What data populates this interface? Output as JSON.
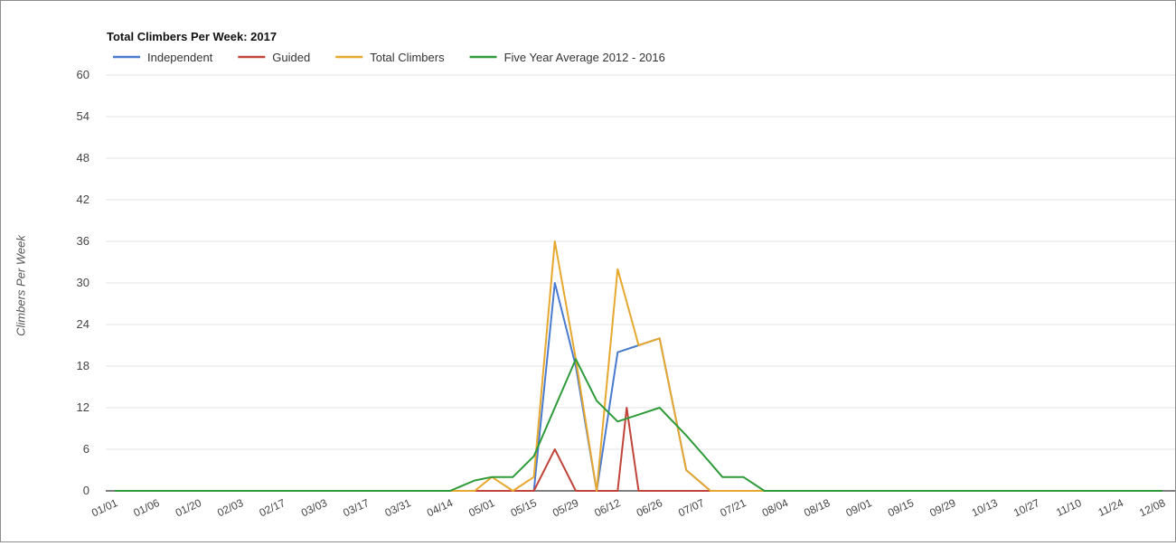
{
  "chart_data": {
    "type": "line",
    "title": "Total Climbers Per Week: 2017",
    "xlabel": "",
    "ylabel": "Climbers Per Week",
    "ylim": [
      0,
      60
    ],
    "yticks": [
      "0",
      "6",
      "12",
      "18",
      "24",
      "30",
      "36",
      "42",
      "48",
      "54",
      "60"
    ],
    "grid": true,
    "legend_position": "top",
    "x": [
      "01/01",
      "01/06",
      "01/20",
      "02/03",
      "02/17",
      "03/03",
      "03/17",
      "03/31",
      "04/14",
      "05/01",
      "05/15",
      "05/29",
      "06/12",
      "06/26",
      "07/07",
      "07/21",
      "08/04",
      "08/18",
      "09/01",
      "09/15",
      "09/29",
      "10/13",
      "10/27",
      "11/10",
      "11/24",
      "12/08"
    ],
    "series": [
      {
        "name": "Independent",
        "color": "#4a7bcf",
        "points": [
          [
            "01/01",
            0
          ],
          [
            "05/15",
            0
          ],
          [
            "05/22",
            30
          ],
          [
            "05/29",
            18
          ],
          [
            "06/05",
            0
          ],
          [
            "06/12",
            20
          ],
          [
            "06/19",
            21
          ],
          [
            "06/26",
            22
          ],
          [
            "07/03",
            3
          ],
          [
            "07/10",
            0
          ],
          [
            "12/08",
            0
          ]
        ]
      },
      {
        "name": "Guided",
        "color": "#c0443a",
        "points": [
          [
            "01/01",
            0
          ],
          [
            "05/15",
            0
          ],
          [
            "05/22",
            6
          ],
          [
            "05/29",
            0
          ],
          [
            "06/12",
            0
          ],
          [
            "06/15",
            12
          ],
          [
            "06/19",
            0
          ],
          [
            "12/08",
            0
          ]
        ]
      },
      {
        "name": "Total Climbers",
        "color": "#e6a82e",
        "points": [
          [
            "01/01",
            0
          ],
          [
            "04/24",
            0
          ],
          [
            "05/01",
            2
          ],
          [
            "05/08",
            0
          ],
          [
            "05/15",
            2
          ],
          [
            "05/22",
            36
          ],
          [
            "05/29",
            19
          ],
          [
            "06/05",
            0
          ],
          [
            "06/12",
            32
          ],
          [
            "06/19",
            21
          ],
          [
            "06/26",
            22
          ],
          [
            "07/03",
            3
          ],
          [
            "07/10",
            0
          ],
          [
            "12/08",
            0
          ]
        ]
      },
      {
        "name": "Five Year Average 2012 - 2016",
        "color": "#2e9a3a",
        "points": [
          [
            "01/01",
            0
          ],
          [
            "04/14",
            0
          ],
          [
            "04/24",
            1.5
          ],
          [
            "05/01",
            2
          ],
          [
            "05/08",
            2
          ],
          [
            "05/15",
            5
          ],
          [
            "05/22",
            12
          ],
          [
            "05/29",
            19
          ],
          [
            "06/05",
            13
          ],
          [
            "06/12",
            10
          ],
          [
            "06/19",
            11
          ],
          [
            "06/26",
            12
          ],
          [
            "07/03",
            8
          ],
          [
            "07/10",
            4
          ],
          [
            "07/14",
            2
          ],
          [
            "07/21",
            2
          ],
          [
            "07/28",
            0
          ],
          [
            "12/08",
            0
          ]
        ]
      }
    ]
  }
}
